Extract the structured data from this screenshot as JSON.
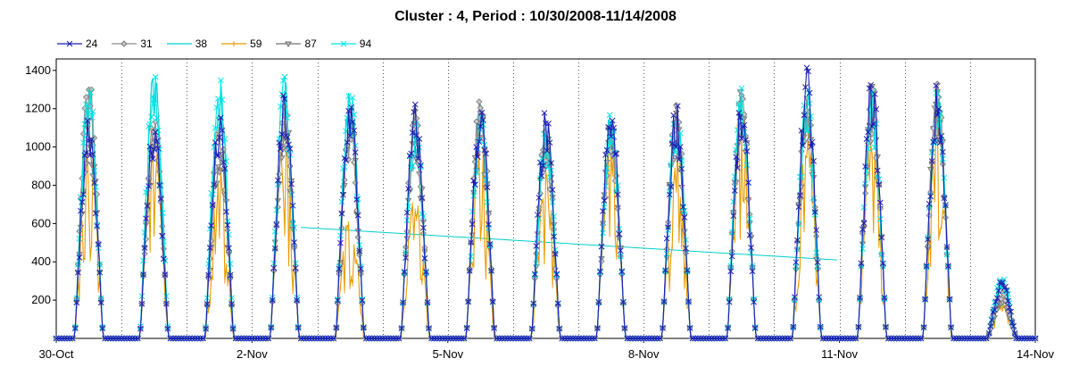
{
  "chart_data": {
    "type": "line",
    "title": "Cluster : 4, Period : 10/30/2008-11/14/2008",
    "xlabel": "",
    "ylabel": "",
    "x_ticks": [
      "30-Oct",
      "2-Nov",
      "5-Nov",
      "8-Nov",
      "11-Nov",
      "14-Nov"
    ],
    "x_range": [
      "2008-10-30",
      "2008-11-14"
    ],
    "y_ticks": [
      200,
      400,
      600,
      800,
      1000,
      1200,
      1400
    ],
    "ylim": [
      0,
      1460
    ],
    "grid": "vertical dotted lines at day boundaries",
    "legend_position": "top-left",
    "series": [
      {
        "name": "24",
        "color": "#1c1cb4",
        "marker": "x",
        "day_peaks": [
          1230,
          1190,
          1180,
          1310,
          1300,
          1240,
          1260,
          1200,
          1250,
          1270,
          1250,
          1420,
          1400,
          1350,
          310
        ]
      },
      {
        "name": "31",
        "color": "#8c8c8c",
        "marker": "diamond",
        "day_peaks": [
          1380,
          1200,
          1180,
          1260,
          1200,
          1210,
          1300,
          1120,
          1200,
          1240,
          1330,
          1300,
          1360,
          1340,
          250
        ]
      },
      {
        "name": "38",
        "color": "#00cccc",
        "marker": "none",
        "day_peaks": [
          1360,
          1440,
          1350,
          1380,
          1340,
          1200,
          1250,
          1150,
          1220,
          1230,
          1300,
          1310,
          1330,
          1320,
          300
        ],
        "drift_line": [
          [
            "2008-11-02T18:00",
            580
          ],
          [
            "2008-11-10T23:00",
            410
          ]
        ]
      },
      {
        "name": "59",
        "color": "#e89b00",
        "marker": "tick",
        "day_peaks": [
          1100,
          1050,
          900,
          1150,
          700,
          780,
          1080,
          900,
          1100,
          1050,
          1280,
          1100,
          1200,
          1300,
          200
        ]
      },
      {
        "name": "87",
        "color": "#707070",
        "marker": "triangle-down",
        "day_peaks": [
          1230,
          1150,
          1100,
          1250,
          1220,
          1180,
          1240,
          1120,
          1180,
          1230,
          1320,
          1280,
          1330,
          1330,
          230
        ]
      },
      {
        "name": "94",
        "color": "#00e5e5",
        "marker": "x",
        "day_peaks": [
          1380,
          1450,
          1390,
          1400,
          1340,
          1220,
          1260,
          1180,
          1230,
          1250,
          1350,
          1330,
          1350,
          1330,
          320
        ]
      }
    ]
  }
}
